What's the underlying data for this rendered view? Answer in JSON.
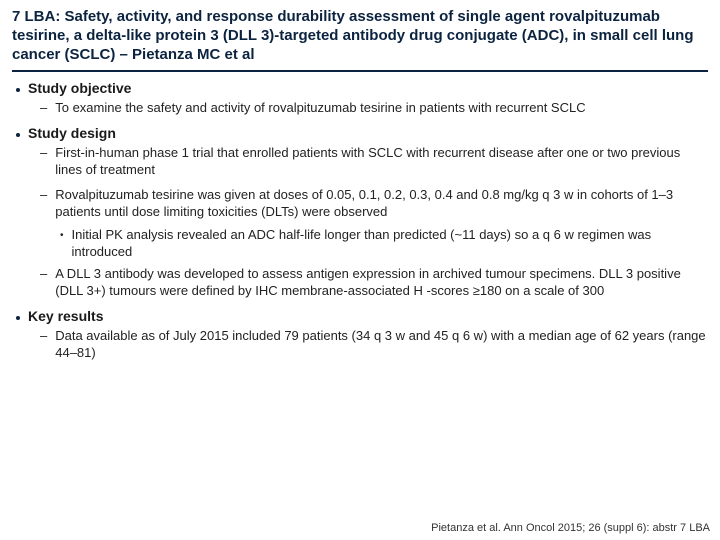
{
  "colors": {
    "heading": "#0c2340",
    "rule": "#0c2340",
    "body": "#1a1a1a",
    "background": "#ffffff"
  },
  "typography": {
    "title_fontsize_pt": 15,
    "section_fontsize_pt": 14,
    "body_fontsize_pt": 13,
    "citation_fontsize_pt": 11,
    "family": "Arial"
  },
  "title": "7 LBA: Safety, activity, and response durability assessment of single agent rovalpituzumab tesirine, a delta-like protein 3 (DLL 3)-targeted antibody drug conjugate (ADC), in small cell lung cancer (SCLC) – Pietanza MC et al",
  "sections": [
    {
      "heading": "Study objective",
      "items": [
        {
          "text": "To examine the safety and activity of rovalpituzumab tesirine in patients with recurrent SCLC"
        }
      ]
    },
    {
      "heading": "Study design",
      "items": [
        {
          "text": "First-in-human phase 1 trial that enrolled patients with SCLC with recurrent disease after one or two previous lines of treatment"
        },
        {
          "text": "Rovalpituzumab tesirine was given at doses of 0.05, 0.1, 0.2, 0.3, 0.4 and 0.8 mg/kg q 3 w in cohorts of 1–3 patients until dose limiting toxicities (DLTs) were observed",
          "subitems": [
            {
              "text": "Initial PK analysis revealed an ADC half-life longer than predicted (~11 days) so a q 6 w regimen was introduced"
            }
          ]
        },
        {
          "text": "A DLL 3 antibody was developed to assess antigen expression in archived tumour specimens. DLL 3 positive (DLL 3+) tumours were defined by IHC membrane-associated H -scores ≥180 on a scale of 300"
        }
      ]
    },
    {
      "heading": "Key results",
      "items": [
        {
          "text": "Data available as of July 2015 included 79 patients (34 q 3 w and 45 q 6 w) with a median age of 62 years (range 44–81)"
        }
      ]
    }
  ],
  "citation": "Pietanza et al. Ann Oncol 2015; 26 (suppl 6): abstr 7 LBA"
}
